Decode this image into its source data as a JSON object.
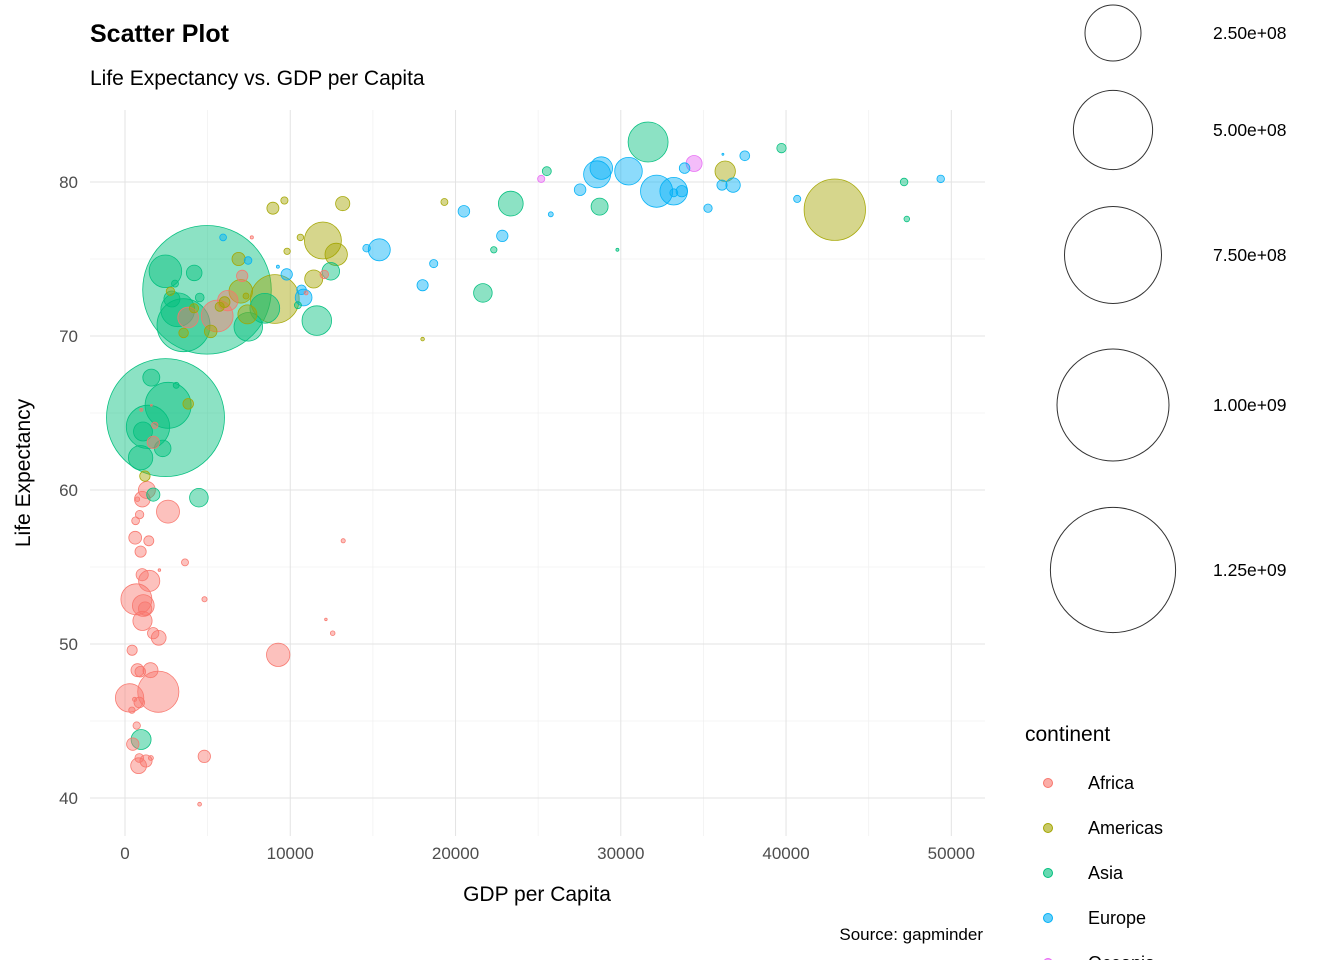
{
  "chart": {
    "title": "Scatter Plot",
    "subtitle": "Life Expectancy vs. GDP per Capita",
    "xlabel": "GDP per Capita",
    "ylabel": "Life Expectancy",
    "caption": "Source: gapminder"
  },
  "legend": {
    "size": {
      "entries": [
        {
          "label": "2.50e+08",
          "value": 250
        },
        {
          "label": "5.00e+08",
          "value": 500
        },
        {
          "label": "7.50e+08",
          "value": 750
        },
        {
          "label": "1.00e+09",
          "value": 1000
        },
        {
          "label": "1.25e+09",
          "value": 1250
        }
      ]
    },
    "continent": {
      "title": "continent",
      "entries": [
        {
          "label": "Africa",
          "color": "#F8766D"
        },
        {
          "label": "Americas",
          "color": "#A3A500"
        },
        {
          "label": "Asia",
          "color": "#00BF7D"
        },
        {
          "label": "Europe",
          "color": "#00B0F6"
        },
        {
          "label": "Oceania",
          "color": "#E76BF3"
        }
      ]
    }
  },
  "chart_data": {
    "type": "scatter",
    "title": "Scatter Plot",
    "subtitle": "Life Expectancy vs. GDP per Capita",
    "xlabel": "GDP per Capita",
    "ylabel": "Life Expectancy",
    "caption": "Source: gapminder",
    "grid": true,
    "legend_position": "right",
    "x_ticks": [
      0,
      10000,
      20000,
      30000,
      40000,
      50000
    ],
    "x_tick_labels": [
      "0",
      "10000",
      "20000",
      "30000",
      "40000",
      "50000"
    ],
    "y_ticks": [
      40,
      50,
      60,
      70,
      80
    ],
    "y_tick_labels": [
      "40",
      "50",
      "60",
      "70",
      "80"
    ],
    "x_range": [
      -2100,
      52000
    ],
    "y_range": [
      37.4,
      84.8
    ],
    "size_legend_values_millions": [
      250,
      500,
      750,
      1000,
      1250
    ],
    "continents": [
      "Africa",
      "Americas",
      "Asia",
      "Europe",
      "Oceania"
    ],
    "colors": {
      "Africa": "#F8766D",
      "Americas": "#A3A500",
      "Asia": "#00BF7D",
      "Europe": "#00B0F6",
      "Oceania": "#E76BF3"
    },
    "point_format": [
      "gdp_per_capita",
      "life_expectancy",
      "population_millions",
      "continent_index"
    ],
    "points": [
      [
        975,
        43.8,
        31.9,
        2
      ],
      [
        5937,
        76.4,
        3.6,
        3
      ],
      [
        6223,
        72.3,
        33.3,
        0
      ],
      [
        4797,
        42.7,
        12.4,
        0
      ],
      [
        12779,
        75.3,
        40.3,
        1
      ],
      [
        34435,
        81.2,
        20.4,
        4
      ],
      [
        36126,
        79.8,
        8.2,
        3
      ],
      [
        29796,
        75.6,
        0.71,
        2
      ],
      [
        1391,
        64.1,
        150.4,
        2
      ],
      [
        33693,
        79.4,
        10.4,
        3
      ],
      [
        1441,
        56.7,
        8.1,
        0
      ],
      [
        3822,
        65.6,
        9.1,
        1
      ],
      [
        7446,
        74.9,
        4.6,
        3
      ],
      [
        12570,
        50.7,
        1.64,
        0
      ],
      [
        9066,
        72.4,
        190.0,
        1
      ],
      [
        10681,
        73.0,
        7.3,
        3
      ],
      [
        1217,
        52.3,
        14.3,
        0
      ],
      [
        430,
        49.6,
        8.4,
        0
      ],
      [
        1714,
        59.7,
        14.1,
        2
      ],
      [
        2042,
        50.4,
        17.7,
        0
      ],
      [
        36319,
        80.7,
        33.4,
        1
      ],
      [
        706,
        44.7,
        4.4,
        0
      ],
      [
        1704,
        50.7,
        10.2,
        0
      ],
      [
        13172,
        78.6,
        16.3,
        1
      ],
      [
        4959,
        73.0,
        1318.7,
        2
      ],
      [
        7007,
        72.9,
        44.2,
        1
      ],
      [
        986,
        65.2,
        0.71,
        0
      ],
      [
        278,
        46.5,
        64.6,
        0
      ],
      [
        3633,
        55.3,
        3.8,
        0
      ],
      [
        9645,
        78.8,
        4.1,
        1
      ],
      [
        1545,
        48.3,
        18.0,
        0
      ],
      [
        14619,
        75.7,
        4.5,
        3
      ],
      [
        8948,
        78.3,
        11.4,
        1
      ],
      [
        22833,
        76.5,
        10.2,
        3
      ],
      [
        35278,
        78.3,
        5.5,
        3
      ],
      [
        2082,
        54.8,
        0.5,
        0
      ],
      [
        6025,
        72.2,
        9.3,
        1
      ],
      [
        6873,
        75.0,
        13.8,
        1
      ],
      [
        5581,
        71.3,
        80.3,
        0
      ],
      [
        5728,
        71.9,
        6.9,
        1
      ],
      [
        12154,
        51.6,
        0.55,
        0
      ],
      [
        641,
        58.0,
        4.9,
        0
      ],
      [
        691,
        52.9,
        76.5,
        0
      ],
      [
        33207,
        79.3,
        5.2,
        3
      ],
      [
        30470,
        80.7,
        61.1,
        3
      ],
      [
        13206,
        56.7,
        1.45,
        0
      ],
      [
        753,
        59.4,
        1.69,
        0
      ],
      [
        32170,
        79.4,
        82.4,
        3
      ],
      [
        1328,
        60.0,
        22.9,
        0
      ],
      [
        27538,
        79.5,
        10.7,
        3
      ],
      [
        5186,
        70.3,
        12.6,
        1
      ],
      [
        943,
        56.0,
        9.9,
        0
      ],
      [
        579,
        46.4,
        1.47,
        0
      ],
      [
        1202,
        60.9,
        8.5,
        1
      ],
      [
        3548,
        70.2,
        7.5,
        1
      ],
      [
        39725,
        82.2,
        7.0,
        2
      ],
      [
        18009,
        73.3,
        10.0,
        3
      ],
      [
        36181,
        81.8,
        0.3,
        3
      ],
      [
        2452,
        64.7,
        1110.4,
        2
      ],
      [
        3541,
        70.7,
        223.5,
        2
      ],
      [
        11606,
        71.0,
        69.5,
        2
      ],
      [
        4471,
        59.5,
        27.5,
        2
      ],
      [
        40676,
        78.9,
        4.1,
        3
      ],
      [
        25523,
        80.7,
        6.4,
        2
      ],
      [
        28570,
        80.5,
        58.1,
        3
      ],
      [
        7321,
        72.6,
        2.8,
        1
      ],
      [
        31656,
        82.6,
        127.5,
        2
      ],
      [
        4519,
        72.5,
        6.1,
        2
      ],
      [
        1463,
        54.1,
        35.6,
        0
      ],
      [
        1593,
        67.3,
        23.3,
        2
      ],
      [
        23348,
        78.6,
        49.0,
        2
      ],
      [
        47307,
        77.6,
        2.5,
        2
      ],
      [
        10461,
        72.0,
        3.9,
        2
      ],
      [
        1569,
        42.6,
        2.0,
        0
      ],
      [
        415,
        45.7,
        3.2,
        0
      ],
      [
        12057,
        74.0,
        6.0,
        0
      ],
      [
        1045,
        59.4,
        19.2,
        0
      ],
      [
        759,
        48.3,
        13.3,
        0
      ],
      [
        12452,
        74.2,
        24.8,
        2
      ],
      [
        1043,
        54.5,
        12.0,
        0
      ],
      [
        1803,
        64.2,
        3.3,
        0
      ],
      [
        10957,
        72.8,
        1.25,
        0
      ],
      [
        11978,
        76.2,
        108.7,
        1
      ],
      [
        3096,
        66.8,
        2.9,
        2
      ],
      [
        9254,
        74.5,
        0.68,
        3
      ],
      [
        3820,
        71.2,
        33.8,
        0
      ],
      [
        824,
        42.1,
        20.0,
        0
      ],
      [
        944,
        62.1,
        47.8,
        2
      ],
      [
        4811,
        52.9,
        2.1,
        0
      ],
      [
        1091,
        63.8,
        28.9,
        2
      ],
      [
        36798,
        79.8,
        16.6,
        3
      ],
      [
        25185,
        80.2,
        4.1,
        4
      ],
      [
        2749,
        72.9,
        5.7,
        1
      ],
      [
        620,
        56.9,
        12.9,
        0
      ],
      [
        2014,
        46.9,
        135.0,
        0
      ],
      [
        49357,
        80.2,
        4.6,
        3
      ],
      [
        22316,
        75.6,
        3.2,
        2
      ],
      [
        2606,
        65.5,
        169.3,
        2
      ],
      [
        9809,
        75.5,
        3.2,
        1
      ],
      [
        4173,
        71.8,
        6.7,
        1
      ],
      [
        7409,
        71.4,
        28.7,
        1
      ],
      [
        3190,
        71.7,
        91.1,
        2
      ],
      [
        15390,
        75.6,
        38.5,
        3
      ],
      [
        20510,
        78.1,
        10.6,
        3
      ],
      [
        19329,
        78.7,
        3.9,
        1
      ],
      [
        7670,
        76.4,
        0.8,
        0
      ],
      [
        10808,
        72.5,
        22.3,
        3
      ],
      [
        863,
        46.2,
        8.9,
        0
      ],
      [
        1598,
        65.5,
        0.2,
        0
      ],
      [
        21655,
        72.8,
        27.6,
        2
      ],
      [
        1712,
        63.1,
        12.3,
        0
      ],
      [
        9787,
        74.0,
        10.2,
        3
      ],
      [
        863,
        42.6,
        6.1,
        0
      ],
      [
        47143,
        80.0,
        4.6,
        2
      ],
      [
        18678,
        74.7,
        5.4,
        3
      ],
      [
        25768,
        77.9,
        2.0,
        3
      ],
      [
        926,
        48.2,
        9.1,
        0
      ],
      [
        9270,
        49.3,
        44.0,
        0
      ],
      [
        28821,
        80.9,
        40.4,
        3
      ],
      [
        2835,
        72.4,
        20.4,
        2
      ],
      [
        2602,
        58.6,
        42.3,
        0
      ],
      [
        4513,
        39.6,
        1.13,
        0
      ],
      [
        33860,
        80.9,
        9.0,
        3
      ],
      [
        37506,
        81.7,
        7.6,
        3
      ],
      [
        4185,
        74.1,
        19.3,
        2
      ],
      [
        28718,
        78.4,
        23.2,
        2
      ],
      [
        1107,
        52.5,
        38.1,
        0
      ],
      [
        7458,
        70.6,
        65.1,
        2
      ],
      [
        883,
        58.4,
        5.7,
        0
      ],
      [
        18009,
        69.8,
        1.06,
        1
      ],
      [
        7093,
        73.9,
        10.3,
        0
      ],
      [
        8458,
        71.8,
        71.2,
        2
      ],
      [
        1056,
        51.5,
        29.2,
        0
      ],
      [
        33203,
        79.4,
        60.8,
        3
      ],
      [
        42952,
        78.2,
        301.1,
        1
      ],
      [
        10611,
        76.4,
        3.4,
        1
      ],
      [
        11416,
        73.7,
        26.1,
        1
      ],
      [
        2442,
        74.2,
        85.3,
        2
      ],
      [
        3025,
        73.4,
        4.0,
        2
      ],
      [
        2281,
        62.7,
        22.2,
        2
      ],
      [
        1271,
        42.4,
        11.7,
        0
      ],
      [
        470,
        43.5,
        12.3,
        0
      ]
    ]
  }
}
